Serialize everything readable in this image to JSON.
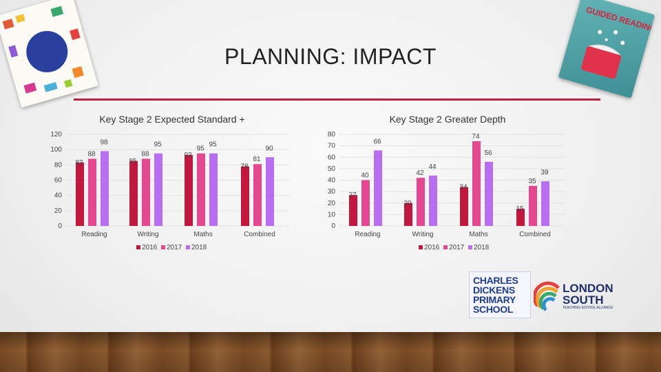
{
  "slide": {
    "title": "PLANNING: IMPACT",
    "rule_color": "#b8213f"
  },
  "books": {
    "left": {
      "icon": "book-cover-icon"
    },
    "right": {
      "icon": "guided-reading-book-icon",
      "title": "GUIDED READING"
    }
  },
  "logos": {
    "school": {
      "lines": [
        "CHARLES",
        "DICKENS",
        "PRIMARY",
        "SCHOOL"
      ]
    },
    "alliance": {
      "lines": [
        "LONDON",
        "SOUTH"
      ],
      "subtitle": "TEACHING SCHOOL ALLIANCE"
    }
  },
  "series_colors": {
    "2016": "#c0183f",
    "2017": "#e4468f",
    "2018": "#b86ef0"
  },
  "chart_data": [
    {
      "type": "bar",
      "title": "Key Stage 2 Expected Standard +",
      "categories": [
        "Reading",
        "Writing",
        "Maths",
        "Combined"
      ],
      "series": [
        {
          "name": "2016",
          "values": [
            83,
            85,
            93,
            78
          ]
        },
        {
          "name": "2017",
          "values": [
            88,
            88,
            95,
            81
          ]
        },
        {
          "name": "2018",
          "values": [
            98,
            95,
            95,
            90
          ]
        }
      ],
      "ylim": [
        0,
        120
      ],
      "yticks": [
        0,
        20,
        40,
        60,
        80,
        100,
        120
      ],
      "grid": true,
      "legend": "bottom-left"
    },
    {
      "type": "bar",
      "title": "Key Stage 2 Greater Depth",
      "categories": [
        "Reading",
        "Writing",
        "Maths",
        "Combined"
      ],
      "series": [
        {
          "name": "2016",
          "values": [
            27,
            20,
            34,
            15
          ]
        },
        {
          "name": "2017",
          "values": [
            40,
            42,
            74,
            35
          ]
        },
        {
          "name": "2018",
          "values": [
            66,
            44,
            56,
            39
          ]
        }
      ],
      "ylim": [
        0,
        80
      ],
      "yticks": [
        0,
        10,
        20,
        30,
        40,
        50,
        60,
        70,
        80
      ],
      "grid": true,
      "legend": "bottom-left"
    }
  ]
}
